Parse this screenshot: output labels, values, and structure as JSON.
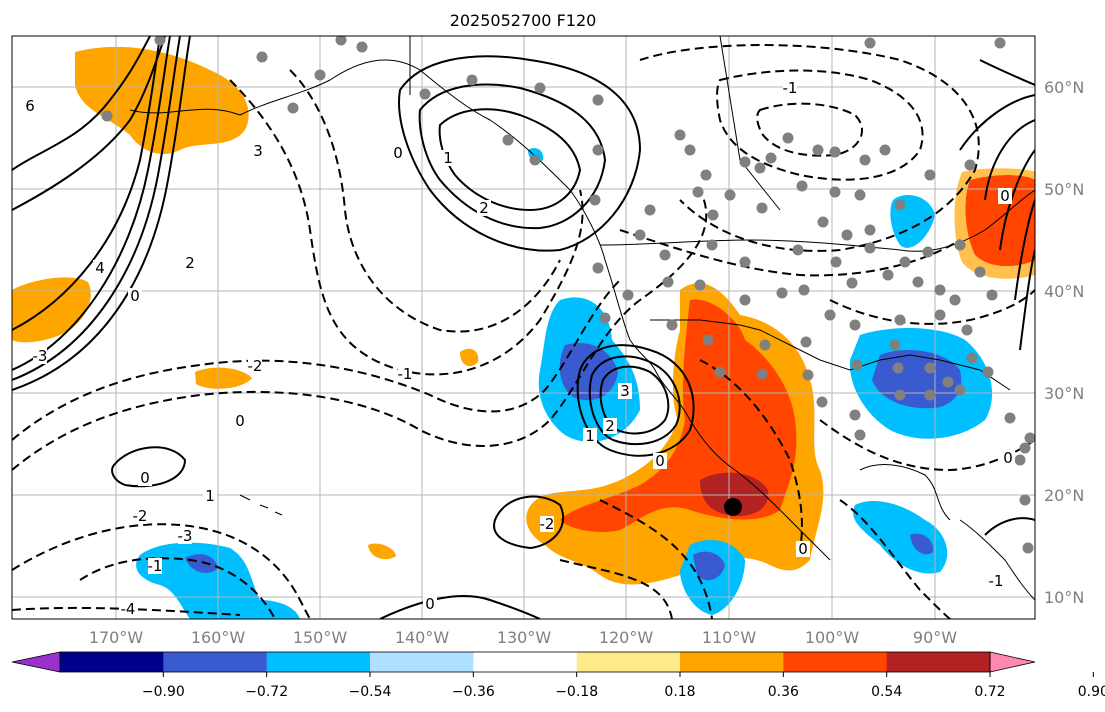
{
  "title": "2025052700 F120",
  "map": {
    "longitude_labels": [
      "170°W",
      "160°W",
      "150°W",
      "140°W",
      "130°W",
      "120°W",
      "110°W",
      "100°W",
      "90°W"
    ],
    "latitude_labels": [
      "60°N",
      "50°N",
      "40°N",
      "30°N",
      "20°N",
      "10°N"
    ],
    "contour_labels": [
      "6",
      "4",
      "2",
      "3",
      "0",
      "-3",
      "-2",
      "-1",
      "0",
      "-1",
      "-2",
      "-3",
      "-4",
      "3",
      "2",
      "1",
      "0",
      "0",
      "1",
      "-2",
      "0",
      "0",
      "-1",
      "0",
      "0",
      "0",
      "1",
      "2",
      "-1"
    ],
    "fill_colors": {
      "strong_negative": "#3a5bd0",
      "negative": "#00bfff",
      "positive": "#ffa500",
      "strong_positive": "#ff4500",
      "very_strong_positive": "#b22222",
      "station_dot": "#808080",
      "marker": "#000000"
    }
  },
  "colorbar": {
    "ticks": [
      "−0.90",
      "−0.72",
      "−0.54",
      "−0.36",
      "−0.18",
      "0.18",
      "0.36",
      "0.54",
      "0.72",
      "0.90"
    ],
    "colors": [
      "#9932cc",
      "#00008b",
      "#3a5bd0",
      "#00bfff",
      "#b0e0ff",
      "#ffffff",
      "#ffea8a",
      "#ffa500",
      "#ff4500",
      "#b22222",
      "#ff88b0"
    ]
  }
}
